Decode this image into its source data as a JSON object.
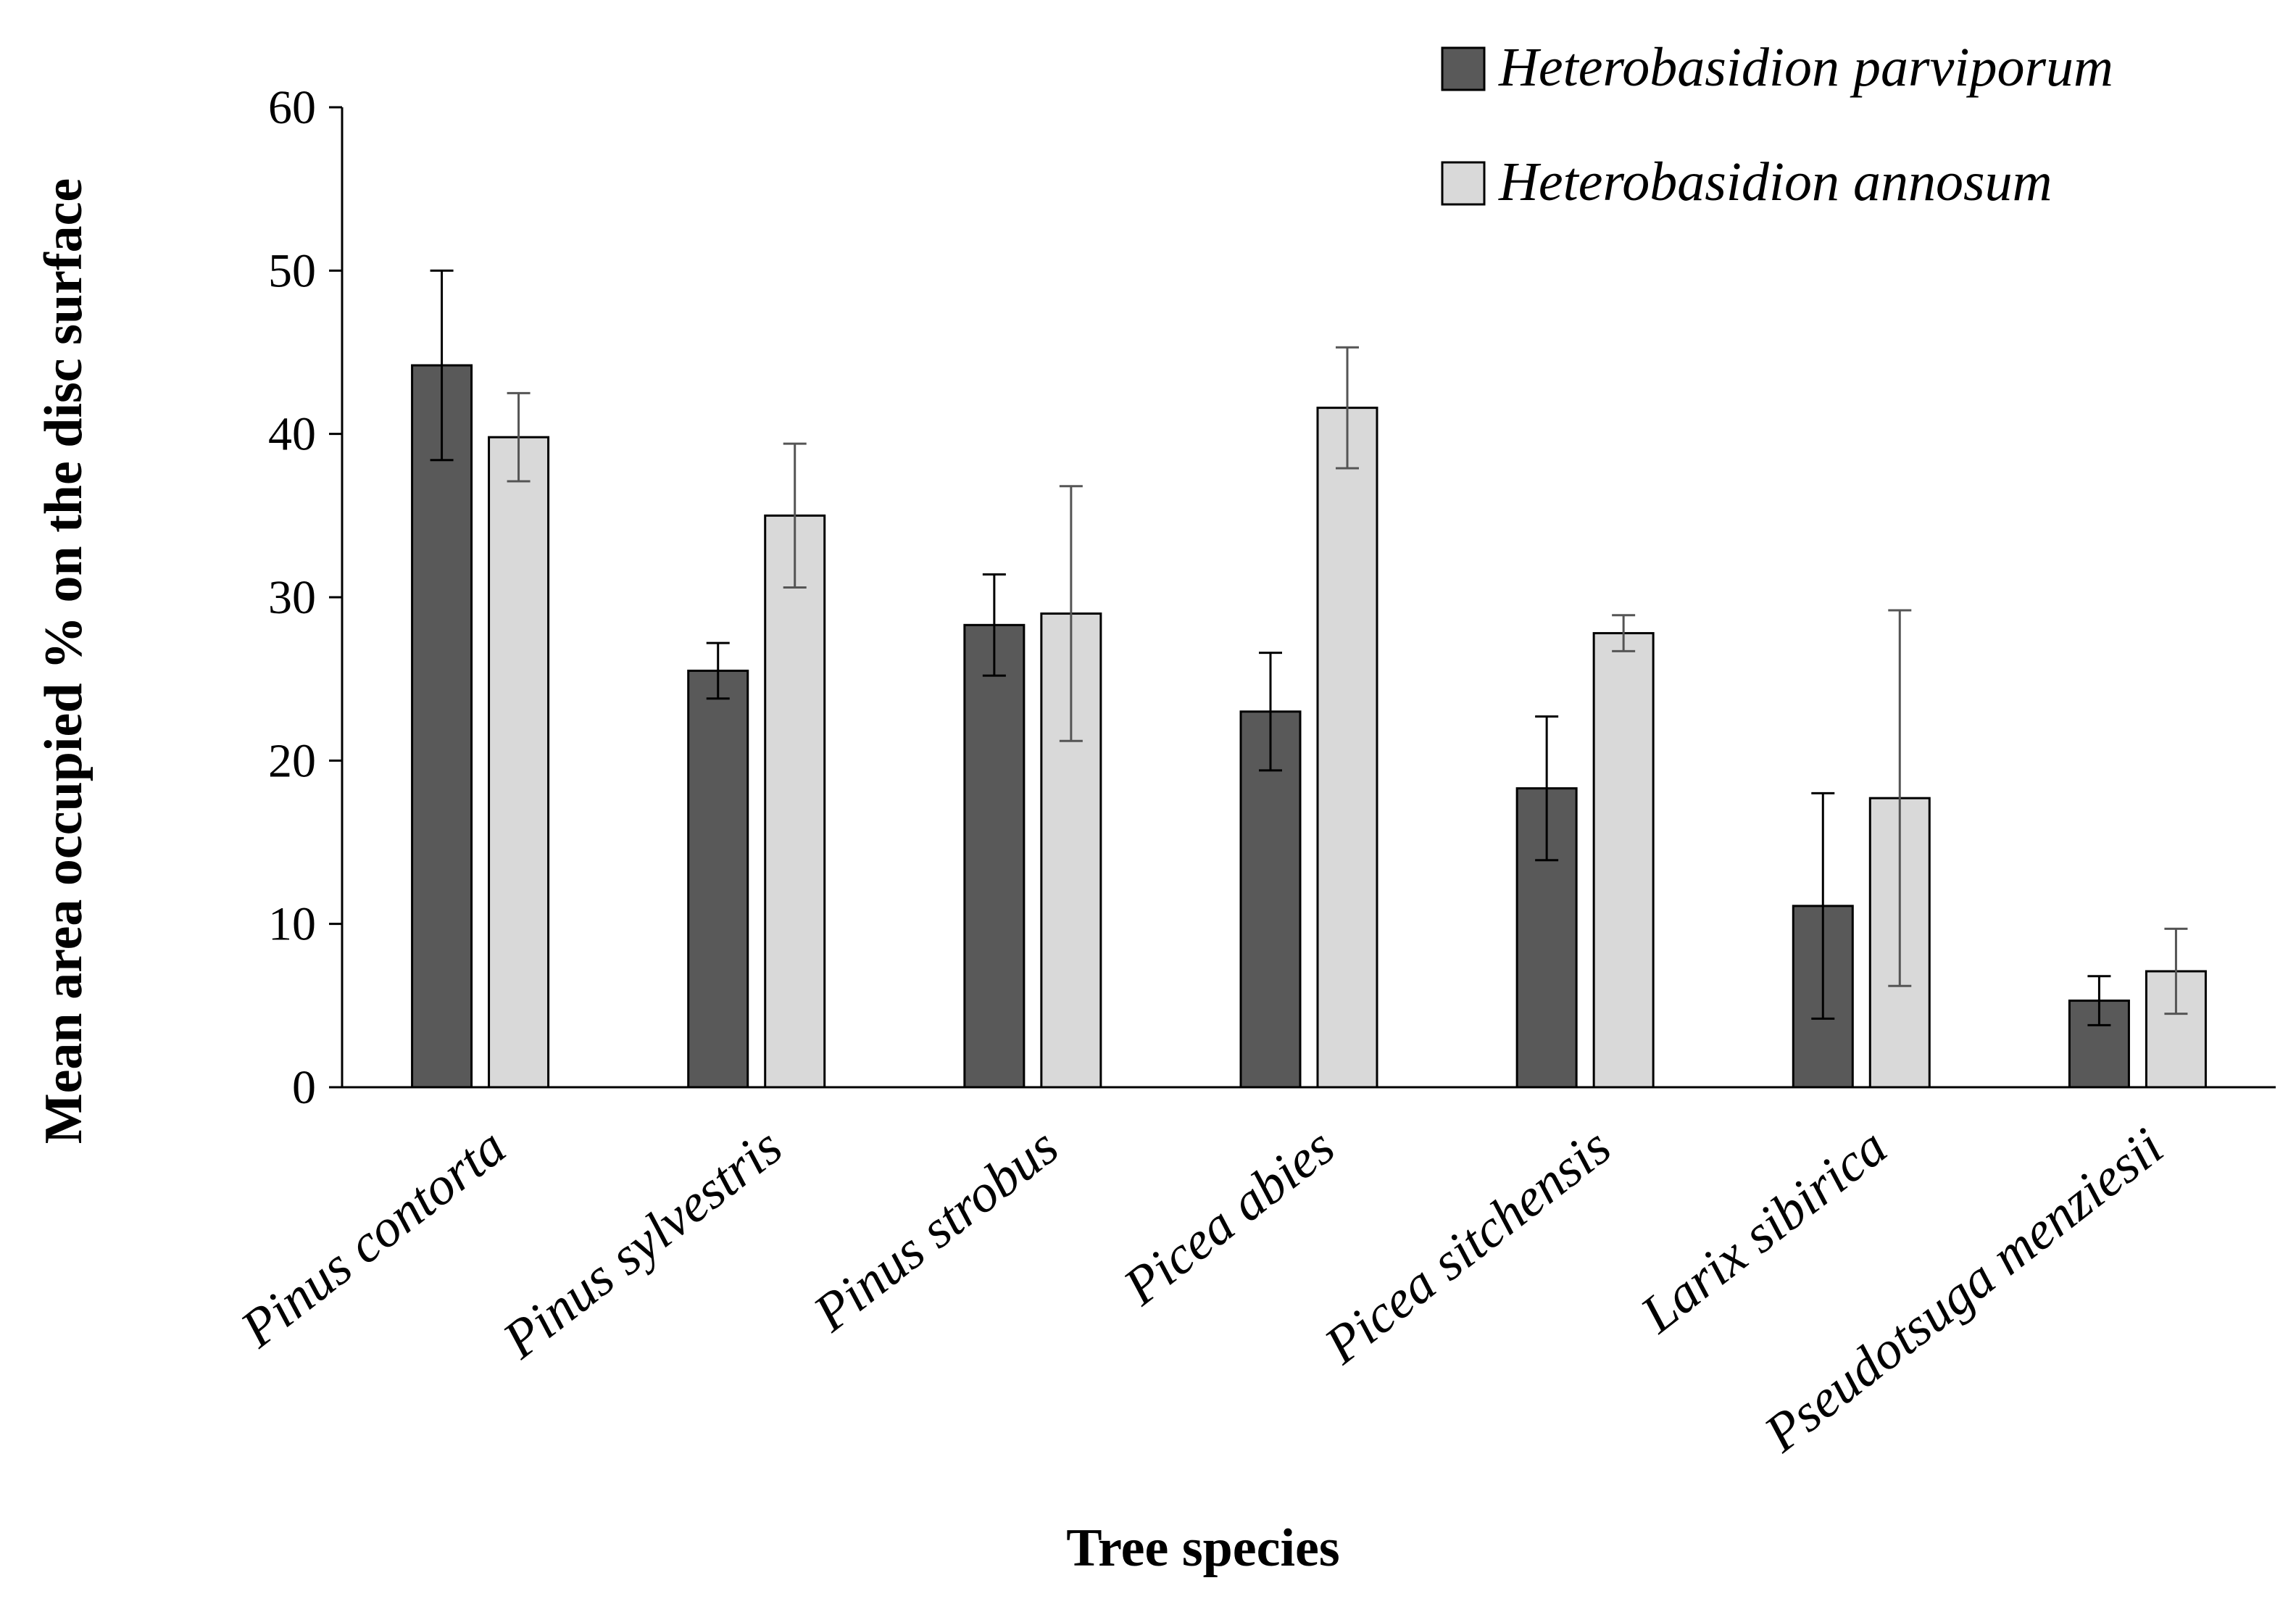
{
  "chart_data": {
    "type": "bar",
    "title": "",
    "xlabel": "Tree species",
    "ylabel": "Mean area occupied % on the disc surface",
    "ylim": [
      0,
      60
    ],
    "yticks": [
      0,
      10,
      20,
      30,
      40,
      50,
      60
    ],
    "grid": false,
    "legend_position": "top-right",
    "categories": [
      "Pinus contorta",
      "Pinus sylvestris",
      "Pinus strobus",
      "Picea abies",
      "Picea sitchensis",
      "Larix sibirica",
      "Pseudotsuga menziesii"
    ],
    "series": [
      {
        "name": "Heterobasidion parviporum",
        "color": "#595959",
        "values": [
          44.2,
          25.5,
          28.3,
          23.0,
          18.3,
          11.1,
          5.3
        ],
        "error": [
          5.8,
          1.7,
          3.1,
          3.6,
          4.4,
          6.9,
          1.5
        ]
      },
      {
        "name": "Heterobasidion annosum",
        "color": "#d9d9d9",
        "values": [
          39.8,
          35.0,
          29.0,
          41.6,
          27.8,
          17.7,
          7.1
        ],
        "error": [
          2.7,
          4.4,
          7.8,
          3.7,
          1.1,
          11.5,
          2.6
        ]
      }
    ]
  }
}
